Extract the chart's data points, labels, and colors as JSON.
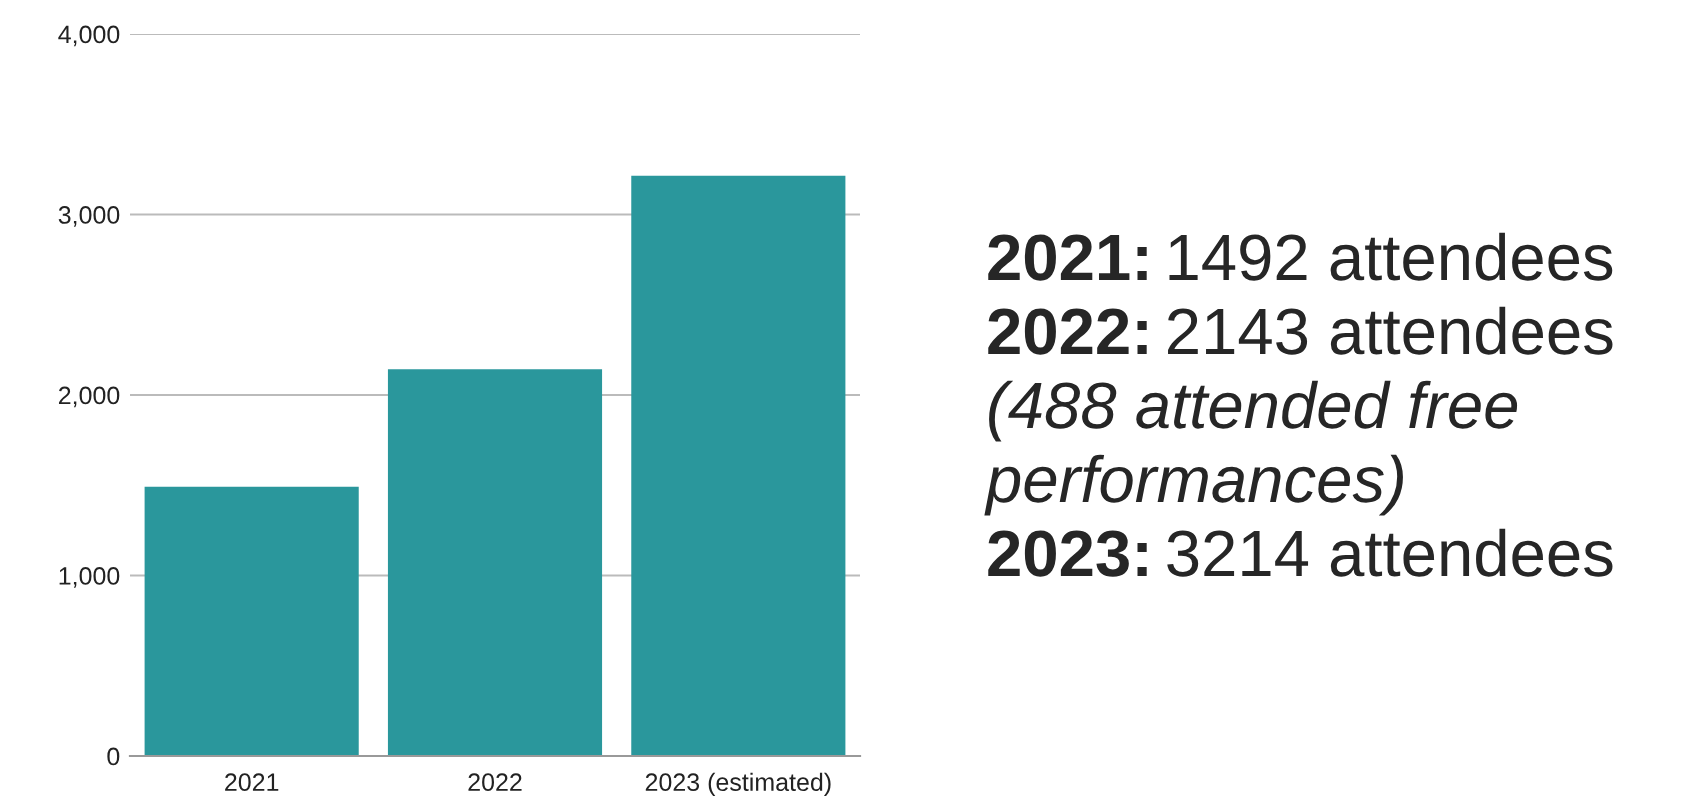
{
  "chart_data": {
    "type": "bar",
    "categories": [
      "2021",
      "2022",
      "2023 (estimated)"
    ],
    "values": [
      1492,
      2143,
      3214
    ],
    "color": "#2a979c",
    "ylim": [
      0,
      4000
    ],
    "yticks": [
      {
        "value": 0,
        "label": "0"
      },
      {
        "value": 1000,
        "label": "1,000"
      },
      {
        "value": 2000,
        "label": "2,000"
      },
      {
        "value": 3000,
        "label": "3,000"
      },
      {
        "value": 4000,
        "label": "4,000"
      }
    ],
    "grid": "y",
    "annotations": [
      "2021: 1492 attendees",
      "2022: 2143 attendees",
      "(488 attended free performances)",
      "2023: 3214 attendees"
    ]
  }
}
